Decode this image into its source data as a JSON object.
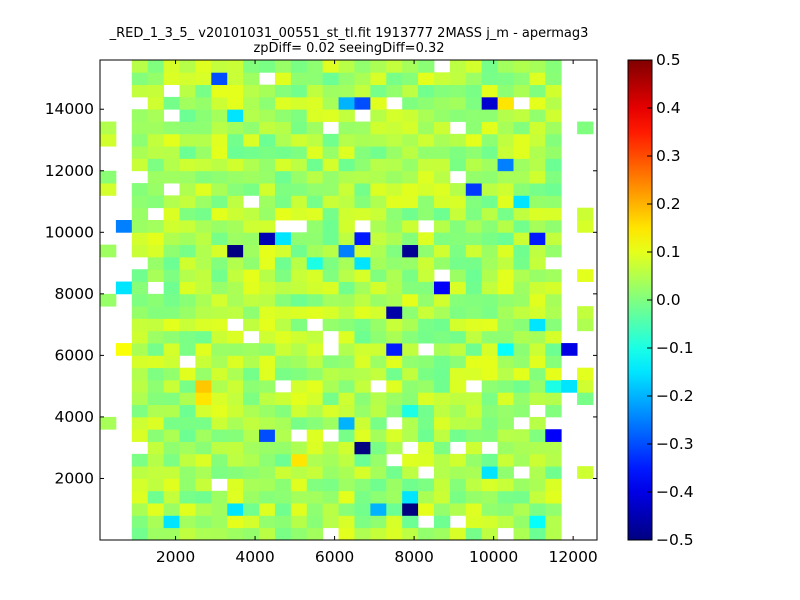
{
  "chart_data": {
    "type": "heatmap",
    "title": "_RED_1_3_5_ v20101031_00551_st_tl.fit 1913777 2MASS j_m - apermag3",
    "subtitle": "zpDiff= 0.02 seeingDiff=0.32",
    "xlabel": "",
    "ylabel": "",
    "xlim": [
      100,
      12600
    ],
    "ylim": [
      0,
      15600
    ],
    "x_ticks": [
      2000,
      4000,
      6000,
      8000,
      10000,
      12000
    ],
    "y_ticks": [
      2000,
      4000,
      6000,
      8000,
      10000,
      12000,
      14000
    ],
    "x_tick_labels": [
      "2000",
      "4000",
      "6000",
      "8000",
      "10000",
      "12000"
    ],
    "y_tick_labels": [
      "2000",
      "4000",
      "6000",
      "8000",
      "10000",
      "12000",
      "14000"
    ],
    "colormap": "jet",
    "vmin": -0.5,
    "vmax": 0.5,
    "colorbar_ticks": [
      0.5,
      0.4,
      0.3,
      0.2,
      0.1,
      0.0,
      -0.1,
      -0.2,
      -0.3,
      -0.4,
      -0.5
    ],
    "colorbar_tick_labels": [
      "0.5",
      "0.4",
      "0.3",
      "0.2",
      "0.1",
      "0.0",
      "−0.1",
      "−0.2",
      "−0.3",
      "−0.4",
      "−0.5"
    ],
    "grid": false,
    "bin_size": 400,
    "x_origin": 100,
    "y_origin": 0,
    "n_cols": 31,
    "n_rows": 39,
    "base_value": 0.04,
    "base_noise": 0.03,
    "highlight_cells": [
      {
        "x": 3000,
        "y": 14800,
        "value": -0.3
      },
      {
        "x": 6200,
        "y": 14000,
        "value": -0.2
      },
      {
        "x": 6600,
        "y": 14000,
        "value": -0.3
      },
      {
        "x": 9700,
        "y": 14000,
        "value": -0.42
      },
      {
        "x": 10100,
        "y": 14000,
        "value": 0.15
      },
      {
        "x": 3400,
        "y": 13600,
        "value": -0.15
      },
      {
        "x": 10100,
        "y": 12000,
        "value": -0.25
      },
      {
        "x": 9300,
        "y": 11200,
        "value": -0.32
      },
      {
        "x": 10500,
        "y": 10800,
        "value": -0.15
      },
      {
        "x": 500,
        "y": 10000,
        "value": -0.25
      },
      {
        "x": 4200,
        "y": 9600,
        "value": -0.45
      },
      {
        "x": 4600,
        "y": 9600,
        "value": -0.15
      },
      {
        "x": 6600,
        "y": 9600,
        "value": -0.35
      },
      {
        "x": 10900,
        "y": 9600,
        "value": -0.35
      },
      {
        "x": 3400,
        "y": 9200,
        "value": -0.5
      },
      {
        "x": 6200,
        "y": 9200,
        "value": -0.25
      },
      {
        "x": 7800,
        "y": 9200,
        "value": -0.48
      },
      {
        "x": 5400,
        "y": 8800,
        "value": -0.1
      },
      {
        "x": 6600,
        "y": 8800,
        "value": -0.15
      },
      {
        "x": 300,
        "y": 8000,
        "value": -0.15
      },
      {
        "x": 8600,
        "y": 8000,
        "value": -0.38
      },
      {
        "x": 7400,
        "y": 7200,
        "value": -0.46
      },
      {
        "x": 10900,
        "y": 6800,
        "value": -0.15
      },
      {
        "x": 500,
        "y": 6000,
        "value": 0.12
      },
      {
        "x": 7400,
        "y": 6000,
        "value": -0.35
      },
      {
        "x": 10100,
        "y": 6000,
        "value": -0.12
      },
      {
        "x": 11700,
        "y": 6000,
        "value": -0.4
      },
      {
        "x": 2600,
        "y": 4800,
        "value": 0.18
      },
      {
        "x": 2600,
        "y": 4400,
        "value": 0.15
      },
      {
        "x": 11300,
        "y": 4800,
        "value": -0.1
      },
      {
        "x": 11700,
        "y": 4800,
        "value": -0.15
      },
      {
        "x": 7800,
        "y": 4000,
        "value": -0.1
      },
      {
        "x": 6200,
        "y": 3600,
        "value": -0.2
      },
      {
        "x": 4200,
        "y": 3200,
        "value": -0.3
      },
      {
        "x": 11300,
        "y": 3200,
        "value": -0.38
      },
      {
        "x": 6600,
        "y": 2800,
        "value": -0.5
      },
      {
        "x": 5000,
        "y": 2400,
        "value": 0.15
      },
      {
        "x": 9700,
        "y": 2000,
        "value": -0.15
      },
      {
        "x": 7800,
        "y": 1200,
        "value": -0.15
      },
      {
        "x": 3400,
        "y": 800,
        "value": -0.15
      },
      {
        "x": 7000,
        "y": 800,
        "value": -0.2
      },
      {
        "x": 7800,
        "y": 800,
        "value": -0.5
      },
      {
        "x": 1800,
        "y": 400,
        "value": -0.15
      },
      {
        "x": 10900,
        "y": 400,
        "value": -0.12
      }
    ]
  }
}
